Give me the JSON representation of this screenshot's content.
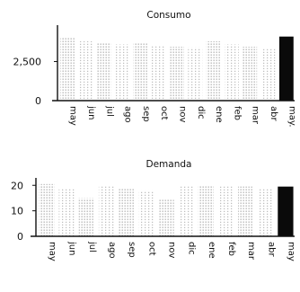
{
  "chart_data": [
    {
      "type": "bar",
      "title": "Consumo",
      "categories": [
        "may",
        "jun",
        "jul",
        "ago",
        "sep",
        "oct",
        "nov",
        "dic",
        "ene",
        "feb",
        "mar",
        "abr",
        "may."
      ],
      "values": [
        4000,
        3800,
        3700,
        3600,
        3650,
        3500,
        3450,
        3400,
        3800,
        3600,
        3450,
        3300,
        4100
      ],
      "highlight_last": true,
      "ylim": [
        0,
        4600
      ],
      "yticks": [
        0,
        2500
      ],
      "ytick_labels": [
        "0",
        "2,500"
      ],
      "xlabel": "",
      "ylabel": "",
      "grid": false,
      "colors": {
        "bar_dotted": "#8a8a8a",
        "bar_solid": "#0a0a0a",
        "axis": "#111111"
      }
    },
    {
      "type": "bar",
      "title": "Demanda",
      "categories": [
        "may",
        "jun",
        "jul",
        "ago",
        "sep",
        "oct",
        "nov",
        "dic",
        "ene",
        "feb",
        "mar",
        "abr",
        "may"
      ],
      "values": [
        20.5,
        19,
        15,
        20,
        18.5,
        18,
        14.5,
        20,
        20,
        20,
        19.5,
        18.5,
        19.5
      ],
      "highlight_last": true,
      "ylim": [
        0,
        21.5
      ],
      "yticks": [
        0,
        10,
        20
      ],
      "ytick_labels": [
        "0",
        "10",
        "20"
      ],
      "xlabel": "",
      "ylabel": "",
      "grid": false,
      "colors": {
        "bar_dotted": "#8a8a8a",
        "bar_solid": "#0a0a0a",
        "axis": "#111111"
      }
    }
  ]
}
